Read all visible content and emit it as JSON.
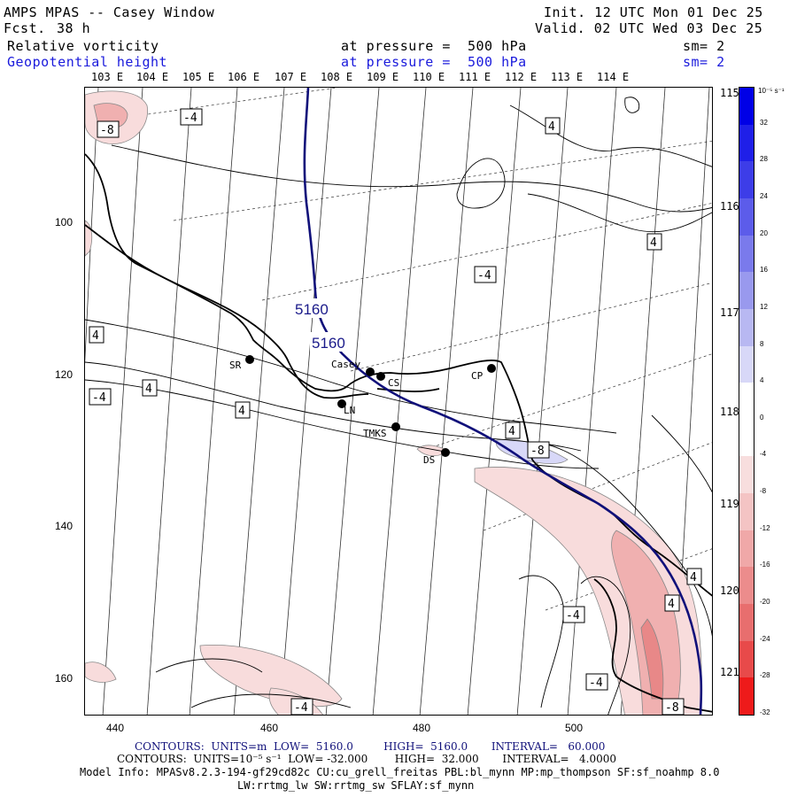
{
  "header": {
    "title": "AMPS MPAS -- Casey Window",
    "forecast_label": "Fcst.",
    "forecast_value": "38 h",
    "init": "Init. 12 UTC Mon 01 Dec 25",
    "valid": "Valid. 02 UTC Wed 03 Dec 25",
    "field1_name": "Relative vorticity",
    "field1_level": "at pressure =  500 hPa",
    "field1_sm": "sm= 2",
    "field2_name": "Geopotential height",
    "field2_level": "at pressure =  500 hPa",
    "field2_sm": "sm= 2"
  },
  "lon_top_labels": [
    "103 E",
    "104 E",
    "105 E",
    "106 E",
    "107 E",
    "108 E",
    "109 E",
    "110 E",
    "111 E",
    "112 E",
    "113 E",
    "114 E"
  ],
  "lon_right_labels": [
    "115 E",
    "116 E",
    "117 E",
    "118 E",
    "119 E",
    "120 E",
    "121 E"
  ],
  "y_axis_ticks": [
    "100",
    "120",
    "140",
    "160"
  ],
  "x_axis_ticks": [
    "440",
    "460",
    "480",
    "500"
  ],
  "colorbar": {
    "unit": "10⁻⁵ s⁻¹",
    "labels": [
      "32",
      "28",
      "24",
      "20",
      "16",
      "12",
      "8",
      "4",
      "0",
      "-4",
      "-8",
      "-12",
      "-16",
      "-20",
      "-24",
      "-28",
      "-32"
    ],
    "colors": [
      "#0000e6",
      "#1f1fe8",
      "#3d3de8",
      "#5c5cea",
      "#7a7aec",
      "#9999ee",
      "#b8b8f2",
      "#d8d8f8",
      "#ffffff",
      "#ffffff",
      "#f8dede",
      "#f4c4c4",
      "#f0a8a8",
      "#ec8c8c",
      "#e86e6e",
      "#e84a4a",
      "#ee1a1a"
    ]
  },
  "stations": [
    {
      "name": "SR"
    },
    {
      "name": "Casey"
    },
    {
      "name": "CS"
    },
    {
      "name": "CP"
    },
    {
      "name": "LN"
    },
    {
      "name": "TMKS"
    },
    {
      "name": "DS"
    }
  ],
  "height_contour_labels": [
    "5160",
    "5160"
  ],
  "vorticity_labels": [
    "-8",
    "-4",
    "4",
    "4",
    "-4",
    "4",
    "-4",
    "4",
    "4",
    "4",
    "-8",
    "4",
    "-4",
    "4",
    "-4",
    "-4",
    "-8"
  ],
  "footer": {
    "line1": "CONTOURS:  UNITS=m  LOW=  5160.0         HIGH=  5160.0       INTERVAL=   60.000",
    "line2": "CONTOURS:  UNITS=10⁻⁵ s⁻¹  LOW= -32.000        HIGH=  32.000       INTERVAL=   4.0000",
    "line3": "Model Info: MPASv8.2.3-194-gf29cd82c CU:cu_grell_freitas PBL:bl_mynn MP:mp_thompson SF:sf_noahmp 8.0",
    "line4": "LW:rrtmg_lw SW:rrtmg_sw SFLAY:sf_mynn"
  }
}
